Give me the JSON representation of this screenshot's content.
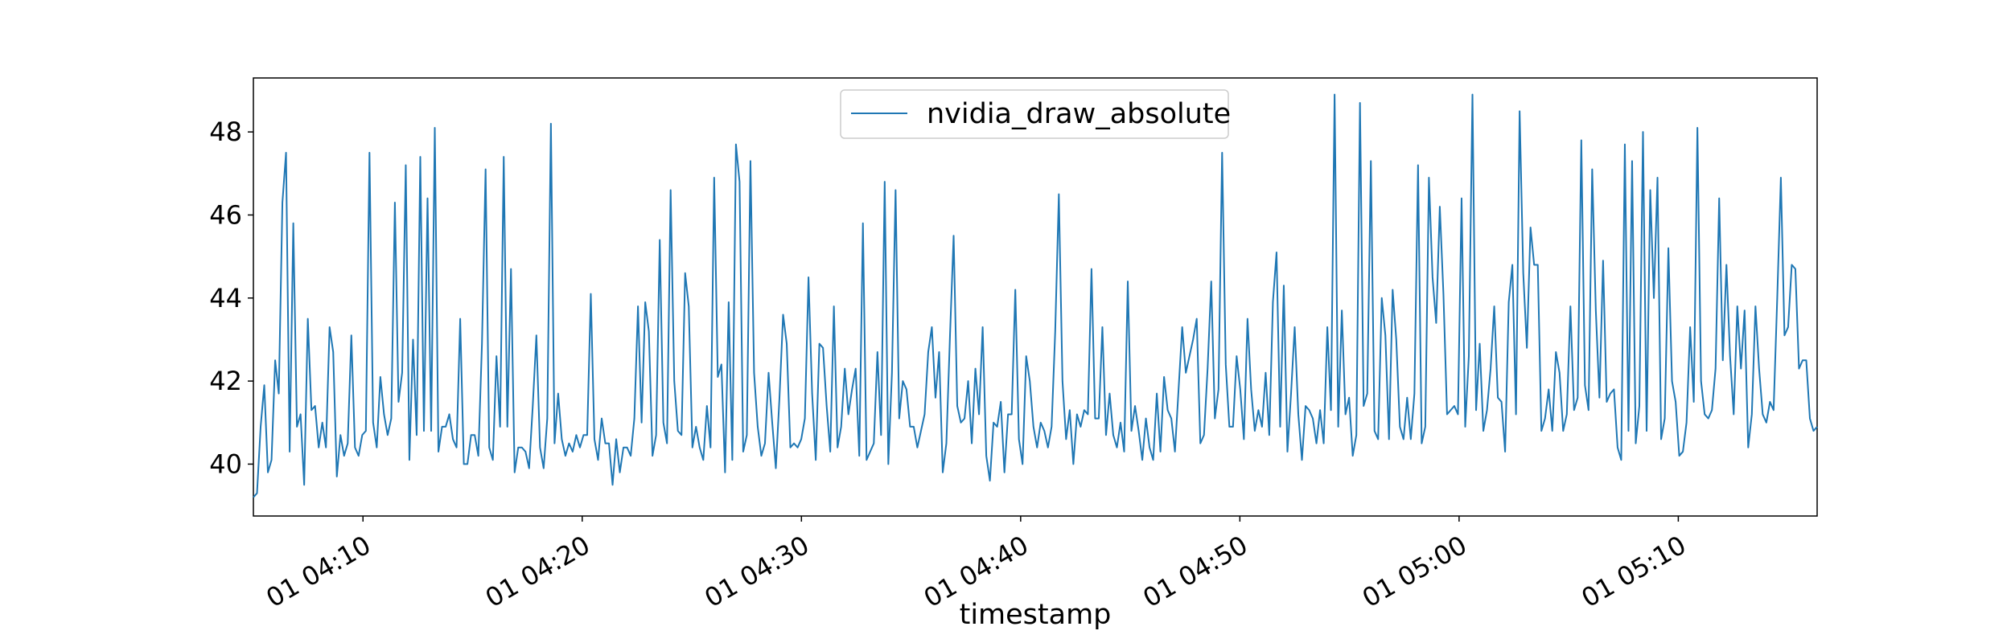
{
  "chart_data": {
    "type": "line",
    "title": "",
    "xlabel": "timestamp",
    "ylabel": "",
    "grid": false,
    "legend_placement": "upper center",
    "x_start": "04:05:00",
    "x_end": "05:16:20",
    "x_ticks": [
      {
        "time": "04:10",
        "label": "01 04:10"
      },
      {
        "time": "04:20",
        "label": "01 04:20"
      },
      {
        "time": "04:30",
        "label": "01 04:30"
      },
      {
        "time": "04:40",
        "label": "01 04:40"
      },
      {
        "time": "04:50",
        "label": "01 04:50"
      },
      {
        "time": "05:00",
        "label": "01 05:00"
      },
      {
        "time": "05:10",
        "label": "01 05:10"
      }
    ],
    "ylim": [
      38.75,
      49.3
    ],
    "y_ticks": [
      40,
      42,
      44,
      46,
      48
    ],
    "series": [
      {
        "name": "nvidia_draw_absolute",
        "color": "#1f77b4",
        "values": [
          39.2,
          39.3,
          40.9,
          41.9,
          39.8,
          40.1,
          42.5,
          41.7,
          46.3,
          47.5,
          40.3,
          45.8,
          40.9,
          41.2,
          39.5,
          43.5,
          41.3,
          41.4,
          40.4,
          41.0,
          40.4,
          43.3,
          42.7,
          39.7,
          40.7,
          40.2,
          40.5,
          43.1,
          40.4,
          40.2,
          40.7,
          40.8,
          47.5,
          41.0,
          40.4,
          42.1,
          41.2,
          40.7,
          41.1,
          46.3,
          41.5,
          42.2,
          47.2,
          40.1,
          43.0,
          40.7,
          47.4,
          40.8,
          46.4,
          40.8,
          48.1,
          40.3,
          40.9,
          40.9,
          41.2,
          40.6,
          40.4,
          43.5,
          40.0,
          40.0,
          40.7,
          40.7,
          40.2,
          42.9,
          47.1,
          40.4,
          40.1,
          42.6,
          40.9,
          47.4,
          40.9,
          44.7,
          39.8,
          40.4,
          40.4,
          40.3,
          39.9,
          41.4,
          43.1,
          40.4,
          39.9,
          41.1,
          48.2,
          40.5,
          41.7,
          40.6,
          40.2,
          40.5,
          40.3,
          40.7,
          40.4,
          40.7,
          40.7,
          44.1,
          40.6,
          40.1,
          41.1,
          40.5,
          40.5,
          39.5,
          40.6,
          39.8,
          40.4,
          40.4,
          40.2,
          41.1,
          43.8,
          41.0,
          43.9,
          43.2,
          40.2,
          40.7,
          45.4,
          41.0,
          40.5,
          46.6,
          42.0,
          40.8,
          40.7,
          44.6,
          43.8,
          40.4,
          40.9,
          40.4,
          40.1,
          41.4,
          40.4,
          46.9,
          42.1,
          42.4,
          39.8,
          43.9,
          40.1,
          47.7,
          46.8,
          40.3,
          40.7,
          47.3,
          42.2,
          40.9,
          40.2,
          40.5,
          42.2,
          41.0,
          39.9,
          41.6,
          43.6,
          42.9,
          40.4,
          40.5,
          40.4,
          40.6,
          41.1,
          44.5,
          41.7,
          40.1,
          42.9,
          42.8,
          41.4,
          40.3,
          43.8,
          40.4,
          40.9,
          42.3,
          41.2,
          41.8,
          42.3,
          40.2,
          45.8,
          40.1,
          40.3,
          40.5,
          42.7,
          40.7,
          46.8,
          40.0,
          42.2,
          46.6,
          41.1,
          42.0,
          41.8,
          40.9,
          40.9,
          40.4,
          40.8,
          41.2,
          42.7,
          43.3,
          41.6,
          42.7,
          39.8,
          40.5,
          43.1,
          45.5,
          41.4,
          41.0,
          41.1,
          42.0,
          40.5,
          42.3,
          41.2,
          43.3,
          40.2,
          39.6,
          41.0,
          40.9,
          41.5,
          39.8,
          41.2,
          41.2,
          44.2,
          40.6,
          40.0,
          42.6,
          42.0,
          40.9,
          40.4,
          41.0,
          40.8,
          40.4,
          40.9,
          43.2,
          46.5,
          42.0,
          40.6,
          41.3,
          40.0,
          41.2,
          40.9,
          41.3,
          41.2,
          44.7,
          41.1,
          41.1,
          43.3,
          40.7,
          41.7,
          40.7,
          40.4,
          41.0,
          40.3,
          44.4,
          40.8,
          41.4,
          40.8,
          40.1,
          41.1,
          40.4,
          40.1,
          41.7,
          40.3,
          42.1,
          41.3,
          41.1,
          40.3,
          41.8,
          43.3,
          42.2,
          42.6,
          43.0,
          43.5,
          40.5,
          40.7,
          42.3,
          44.4,
          41.1,
          41.8,
          47.5,
          42.4,
          40.9,
          40.9,
          42.6,
          41.8,
          40.6,
          43.5,
          41.8,
          40.8,
          41.3,
          40.9,
          42.2,
          40.7,
          43.9,
          45.1,
          40.9,
          44.3,
          40.3,
          41.7,
          43.3,
          41.2,
          40.1,
          41.4,
          41.3,
          41.1,
          40.5,
          41.3,
          40.5,
          43.3,
          41.3,
          48.9,
          40.9,
          43.7,
          41.2,
          41.6,
          40.2,
          40.7,
          48.7,
          41.4,
          41.7,
          47.3,
          40.8,
          40.6,
          44.0,
          43.1,
          40.6,
          44.2,
          43.0,
          40.9,
          40.6,
          41.6,
          40.6,
          41.7,
          47.2,
          40.5,
          40.9,
          46.9,
          44.5,
          43.4,
          46.2,
          44.1,
          41.2,
          41.3,
          41.4,
          41.2,
          46.4,
          40.9,
          42.6,
          48.9,
          41.3,
          42.9,
          40.8,
          41.3,
          42.3,
          43.8,
          41.6,
          41.5,
          40.3,
          43.9,
          44.8,
          41.2,
          48.5,
          44.6,
          42.8,
          45.7,
          44.8,
          44.8,
          40.8,
          41.1,
          41.8,
          40.8,
          42.7,
          42.2,
          40.8,
          41.2,
          43.8,
          41.3,
          41.6,
          47.8,
          41.9,
          41.3,
          47.1,
          43.7,
          41.6,
          44.9,
          41.5,
          41.7,
          41.8,
          40.4,
          40.1,
          47.7,
          40.8,
          47.3,
          40.5,
          41.4,
          48.0,
          40.8,
          46.6,
          44.0,
          46.9,
          40.6,
          41.1,
          45.2,
          42.0,
          41.5,
          40.2,
          40.3,
          41.0,
          43.3,
          41.5,
          48.1,
          42.0,
          41.2,
          41.1,
          41.3,
          42.3,
          46.4,
          42.5,
          44.8,
          42.6,
          41.2,
          43.8,
          42.3,
          43.7,
          40.4,
          41.2,
          43.8,
          42.3,
          41.2,
          41.0,
          41.5,
          41.3,
          44.0,
          46.9,
          43.1,
          43.3,
          44.8,
          44.7,
          42.3,
          42.5,
          42.5,
          41.1,
          40.8,
          40.9
        ]
      }
    ]
  }
}
